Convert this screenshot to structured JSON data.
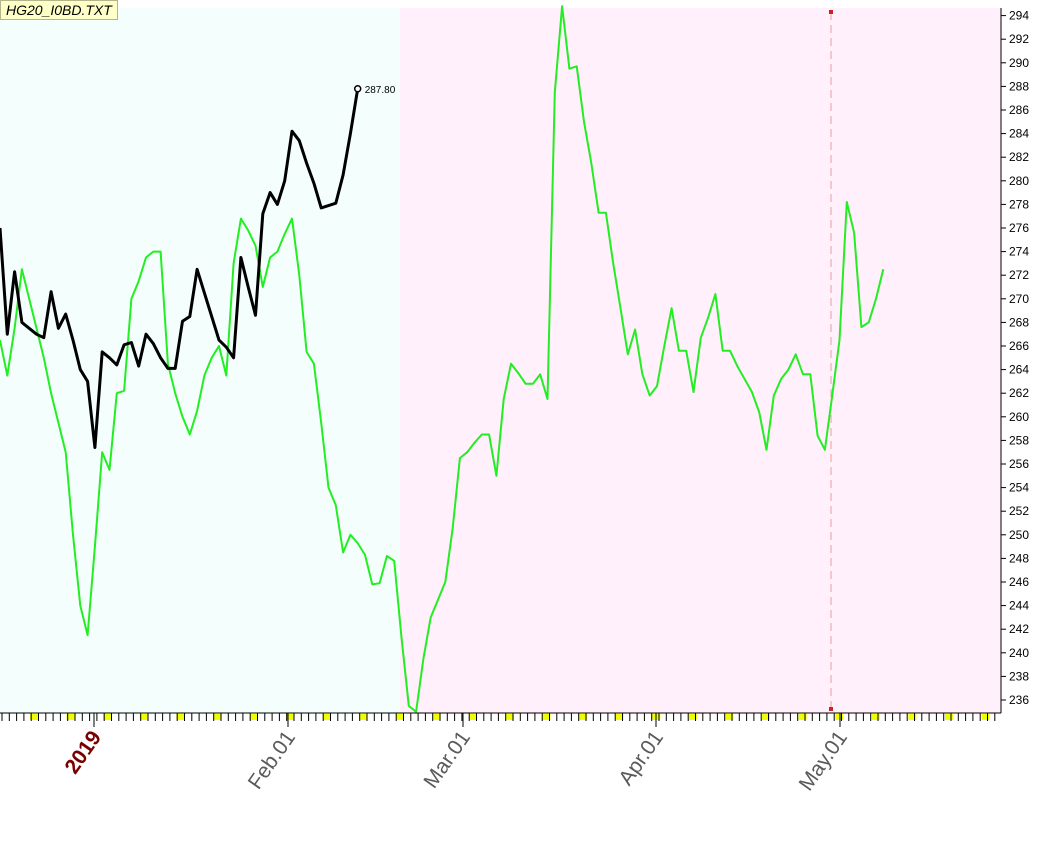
{
  "title": "HG20_I0BD.TXT",
  "colors": {
    "history_bg": "#f4fffd",
    "projection_bg": "#fff0fb",
    "green_line": "#22ee22",
    "black_line": "#000000",
    "marker": "#cc2222",
    "year_label": "#7a0000",
    "axis_tick_yellow": "#f0ff00"
  },
  "chart_data": {
    "type": "line",
    "ylim": [
      235,
      295
    ],
    "yticks": [
      236,
      238,
      240,
      242,
      244,
      246,
      248,
      250,
      252,
      254,
      256,
      258,
      260,
      262,
      264,
      266,
      268,
      270,
      272,
      274,
      276,
      278,
      280,
      282,
      284,
      286,
      288,
      290,
      292,
      294
    ],
    "x_tick_labels": [
      "2019",
      "Feb.01",
      "Mar.01",
      "Apr.01",
      "May.01"
    ],
    "last_value_label": "287.80",
    "series": [
      {
        "color": "green",
        "values": [
          266.5,
          263.5,
          267.5,
          272.5,
          270,
          267.5,
          265,
          262,
          259.5,
          257,
          250,
          244,
          241.5,
          249,
          257,
          255.5,
          262,
          262.2,
          270,
          271.5,
          273.5,
          274,
          274,
          264.5,
          262,
          260,
          258.5,
          260.5,
          263.5,
          265,
          266,
          263.5,
          273,
          276.8,
          275.8,
          274.5,
          271,
          273.5,
          274,
          275.5,
          276.8,
          272,
          265.5,
          264.5,
          259.5,
          254,
          252.5,
          248.5,
          250,
          249.3,
          248.3,
          245.8,
          245.9,
          248.2,
          247.8,
          241.3,
          235.5,
          235,
          239.5,
          243,
          244.5,
          246,
          250.5,
          256.5,
          257,
          257.8,
          258.5,
          258.5,
          255,
          261.5,
          264.5,
          263.7,
          262.8,
          262.8,
          263.6,
          261.5,
          287.5,
          294.8,
          289.5,
          289.7,
          285,
          281.5,
          277.3,
          277.3,
          273,
          269.2,
          265.3,
          267.4,
          263.6,
          261.8,
          262.6,
          266,
          269.2,
          265.6,
          265.6,
          262.1,
          266.7,
          268.4,
          270.4,
          265.6,
          265.6,
          264.3,
          263.2,
          262.1,
          260.4,
          257.2,
          261.8,
          263.2,
          264,
          265.3,
          263.6,
          263.6,
          258.4,
          257.2,
          261.8,
          266.5,
          278.2,
          275.6,
          267.6,
          268,
          270,
          272.5
        ]
      },
      {
        "color": "black",
        "values": [
          276,
          267,
          272.3,
          268,
          267.5,
          267,
          266.7,
          270.6,
          267.5,
          268.7,
          266.5,
          264,
          263,
          257.4,
          265.5,
          265,
          264.4,
          266.1,
          266.3,
          264.3,
          267,
          266.2,
          265,
          264.1,
          264.1,
          268.1,
          268.5,
          272.5,
          270.5,
          268.5,
          266.5,
          265.9,
          265,
          273.5,
          271,
          268.6,
          277.2,
          279,
          278,
          280,
          284.2,
          283.4,
          281.5,
          279.8,
          277.7,
          277.9,
          278.1,
          280.5,
          284,
          287.8
        ]
      }
    ]
  }
}
